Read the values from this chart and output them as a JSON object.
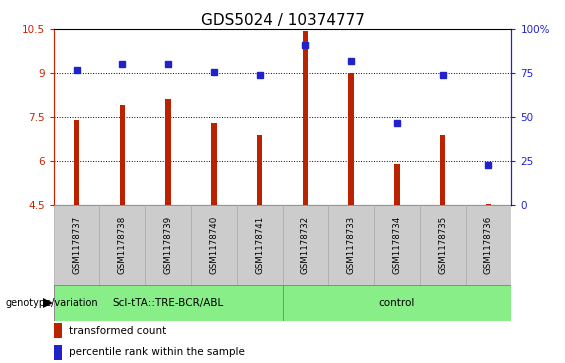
{
  "title": "GDS5024 / 10374777",
  "samples": [
    "GSM1178737",
    "GSM1178738",
    "GSM1178739",
    "GSM1178740",
    "GSM1178741",
    "GSM1178732",
    "GSM1178733",
    "GSM1178734",
    "GSM1178735",
    "GSM1178736"
  ],
  "bar_values": [
    7.4,
    7.9,
    8.1,
    7.3,
    6.9,
    10.45,
    9.0,
    5.9,
    6.9,
    4.55
  ],
  "dot_values": [
    9.1,
    9.3,
    9.3,
    9.05,
    8.95,
    9.95,
    9.4,
    7.3,
    8.95,
    5.85
  ],
  "bar_color": "#bb2200",
  "dot_color": "#2222cc",
  "ylim_left": [
    4.5,
    10.5
  ],
  "ylim_right": [
    0,
    100
  ],
  "yticks_left": [
    4.5,
    6.0,
    7.5,
    9.0,
    10.5
  ],
  "ytick_labels_left": [
    "4.5",
    "6",
    "7.5",
    "9",
    "10.5"
  ],
  "yticks_right": [
    0,
    25,
    50,
    75,
    100
  ],
  "ytick_labels_right": [
    "0",
    "25",
    "50",
    "75",
    "100%"
  ],
  "hlines": [
    6.0,
    7.5,
    9.0
  ],
  "group1_label": "Scl-tTA::TRE-BCR/ABL",
  "group2_label": "control",
  "group1_indices": [
    0,
    1,
    2,
    3,
    4
  ],
  "group2_indices": [
    5,
    6,
    7,
    8,
    9
  ],
  "group_color": "#88ee88",
  "legend_bar_label": "transformed count",
  "legend_dot_label": "percentile rank within the sample",
  "genotype_label": "genotype/variation",
  "title_fontsize": 11,
  "tick_label_fontsize": 7.5,
  "axis_color_left": "#cc2200",
  "axis_color_right": "#2222cc",
  "bar_width": 0.12,
  "sample_box_color": "#cccccc",
  "sample_box_edge": "#aaaaaa"
}
